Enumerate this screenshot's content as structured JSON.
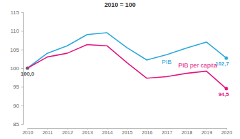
{
  "chart_data": {
    "type": "line",
    "subtitle": "2010 = 100",
    "categories": [
      "2010",
      "2011",
      "2012",
      "2013",
      "2014",
      "2015",
      "2016",
      "2017",
      "2018",
      "2019",
      "2020"
    ],
    "series": [
      {
        "name": "PIB",
        "color": "#2aa8dc",
        "values": [
          100,
          104,
          106,
          109,
          109.5,
          105.5,
          102.2,
          103.6,
          105.4,
          107,
          102.7
        ],
        "value_labels": [
          "100,0",
          null,
          null,
          null,
          null,
          null,
          null,
          null,
          null,
          null,
          "102,7"
        ]
      },
      {
        "name": "PIB per capita",
        "color": "#e2137f",
        "values": [
          100,
          103,
          104,
          106.3,
          106,
          101.5,
          97.3,
          97.7,
          98.6,
          99.2,
          94.5
        ],
        "value_labels": [
          null,
          null,
          null,
          null,
          null,
          null,
          null,
          null,
          null,
          null,
          "94,5"
        ]
      }
    ],
    "ylim": [
      85,
      115
    ],
    "yticks": [
      85,
      90,
      95,
      100,
      105,
      110,
      115
    ],
    "grid": false,
    "data_labels": true
  }
}
